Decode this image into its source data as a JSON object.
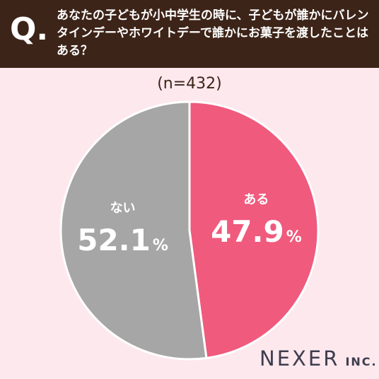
{
  "header": {
    "q_mark": "Q.",
    "question": "あなたの子どもが小中学生の時に、子どもが誰かにバレンタインデーやホワイトデーで誰かにお菓子を渡したことはある？"
  },
  "sample_size": "(n=432)",
  "brand": {
    "name": "NEXER",
    "suffix": "INC."
  },
  "colors": {
    "header_bg": "#3d2418",
    "page_bg": "#fde8ee",
    "aru": "#f05a7d",
    "nai": "#a6a6a6",
    "slice_border": "#ffffff"
  },
  "chart_data": {
    "type": "pie",
    "unit": "%",
    "slices": [
      {
        "label": "ある",
        "value": 47.9,
        "color": "#f05a7d"
      },
      {
        "label": "ない",
        "value": 52.1,
        "color": "#a6a6a6"
      }
    ]
  }
}
